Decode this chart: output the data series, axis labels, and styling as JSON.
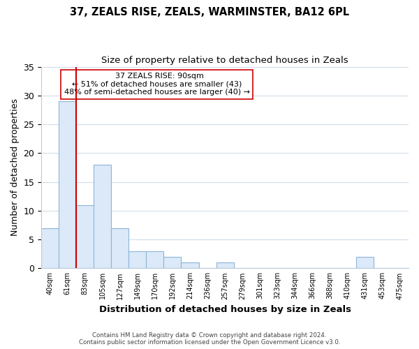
{
  "title1": "37, ZEALS RISE, ZEALS, WARMINSTER, BA12 6PL",
  "title2": "Size of property relative to detached houses in Zeals",
  "xlabel": "Distribution of detached houses by size in Zeals",
  "ylabel": "Number of detached properties",
  "bar_labels": [
    "40sqm",
    "61sqm",
    "83sqm",
    "105sqm",
    "127sqm",
    "149sqm",
    "170sqm",
    "192sqm",
    "214sqm",
    "236sqm",
    "257sqm",
    "279sqm",
    "301sqm",
    "323sqm",
    "344sqm",
    "366sqm",
    "388sqm",
    "410sqm",
    "431sqm",
    "453sqm",
    "475sqm"
  ],
  "bar_heights": [
    7,
    29,
    11,
    18,
    7,
    3,
    3,
    2,
    1,
    0,
    1,
    0,
    0,
    0,
    0,
    0,
    0,
    0,
    2,
    0,
    0
  ],
  "bar_color": "#dce9f8",
  "bar_edge_color": "#8cb4d8",
  "vline_color": "#cc0000",
  "ylim": [
    0,
    35
  ],
  "yticks": [
    0,
    5,
    10,
    15,
    20,
    25,
    30,
    35
  ],
  "annotation_line1": "37 ZEALS RISE: 90sqm",
  "annotation_line2": "← 51% of detached houses are smaller (43)",
  "annotation_line3": "48% of semi-detached houses are larger (40) →",
  "footer1": "Contains HM Land Registry data © Crown copyright and database right 2024.",
  "footer2": "Contains public sector information licensed under the Open Government Licence v3.0.",
  "background_color": "#ffffff",
  "grid_color": "#d0dcea"
}
